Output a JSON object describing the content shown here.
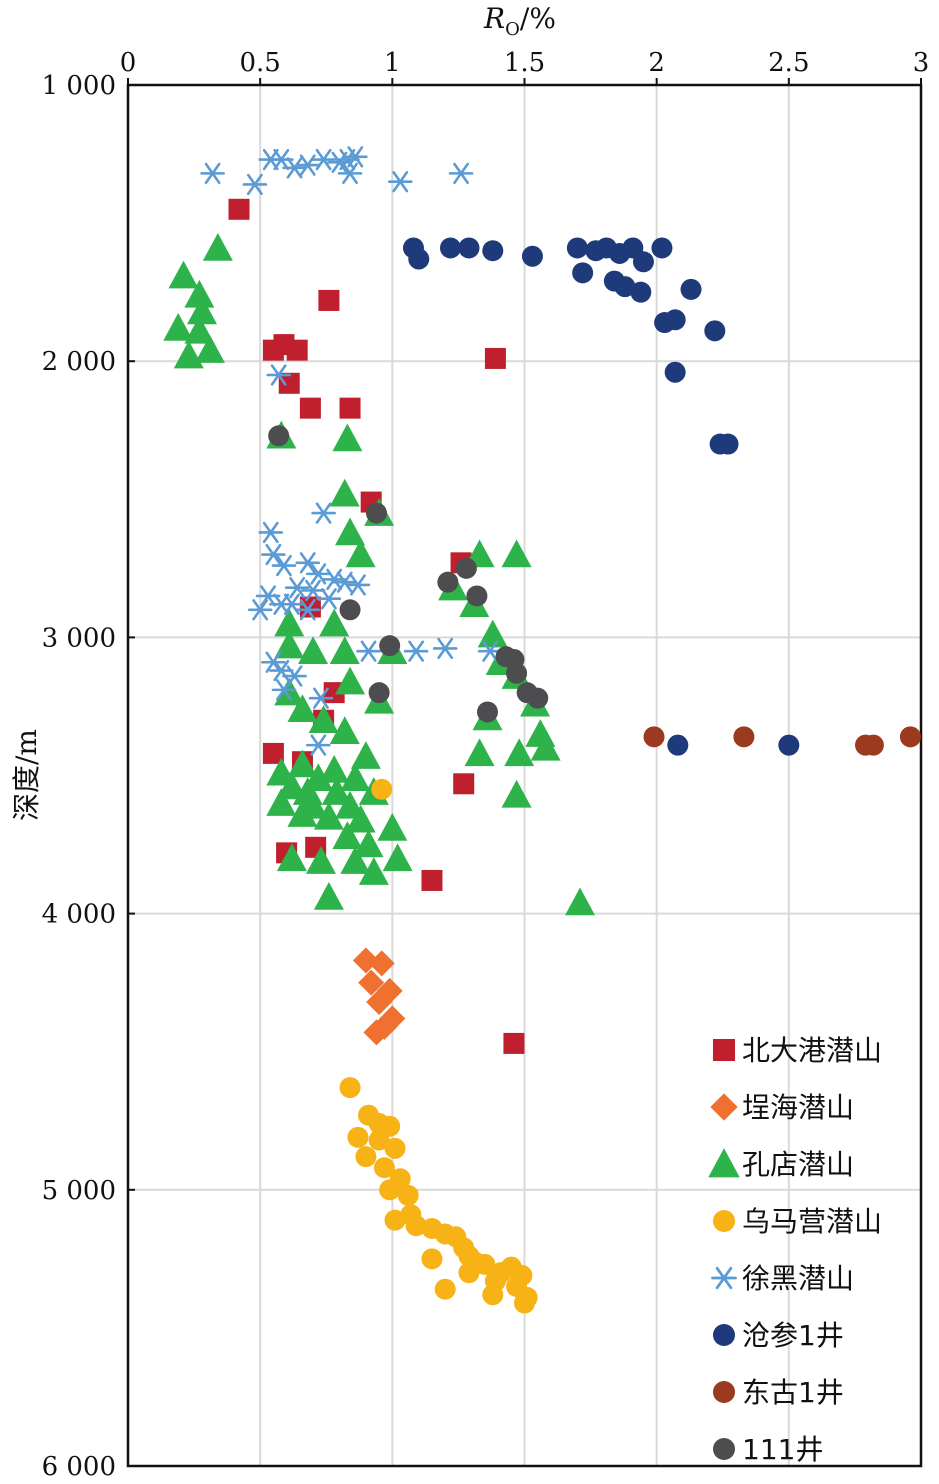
{
  "chart_data": {
    "type": "scatter",
    "title": "",
    "xlabel": "R",
    "xlabel_sub": "O",
    "xlabel_unit": "/%",
    "ylabel": "深度/m",
    "xlim": [
      0,
      3
    ],
    "ylim": [
      1000,
      6000
    ],
    "y_inverted": true,
    "x_axis_position": "top",
    "grid": true,
    "legend_position": "bottom-right",
    "x_ticks": [
      {
        "value": 0,
        "label": "0"
      },
      {
        "value": 0.5,
        "label": "0.5"
      },
      {
        "value": 1,
        "label": "1"
      },
      {
        "value": 1.5,
        "label": "1.5"
      },
      {
        "value": 2,
        "label": "2"
      },
      {
        "value": 2.5,
        "label": "2.5"
      },
      {
        "value": 3,
        "label": "3"
      }
    ],
    "y_ticks": [
      {
        "value": 1000,
        "label": "1 000"
      },
      {
        "value": 2000,
        "label": "2 000"
      },
      {
        "value": 3000,
        "label": "3 000"
      },
      {
        "value": 4000,
        "label": "4 000"
      },
      {
        "value": 5000,
        "label": "5 000"
      },
      {
        "value": 6000,
        "label": "6 000"
      }
    ],
    "series": [
      {
        "name": "北大港潜山",
        "marker": "square",
        "color": "#c0202e",
        "points": [
          [
            0.42,
            1450
          ],
          [
            0.76,
            1780
          ],
          [
            0.55,
            1960
          ],
          [
            0.59,
            1940
          ],
          [
            0.64,
            1960
          ],
          [
            0.61,
            2080
          ],
          [
            0.69,
            2170
          ],
          [
            0.84,
            2170
          ],
          [
            1.39,
            1990
          ],
          [
            0.92,
            2510
          ],
          [
            1.26,
            2730
          ],
          [
            0.69,
            2890
          ],
          [
            0.78,
            3200
          ],
          [
            0.74,
            3300
          ],
          [
            0.55,
            3420
          ],
          [
            0.66,
            3450
          ],
          [
            1.27,
            3530
          ],
          [
            0.6,
            3780
          ],
          [
            0.71,
            3760
          ],
          [
            1.15,
            3880
          ],
          [
            1.46,
            4470
          ]
        ]
      },
      {
        "name": "埕海潜山",
        "marker": "diamond",
        "color": "#f07030",
        "points": [
          [
            0.9,
            4170
          ],
          [
            0.96,
            4180
          ],
          [
            0.92,
            4250
          ],
          [
            0.99,
            4280
          ],
          [
            0.95,
            4320
          ],
          [
            1.0,
            4380
          ],
          [
            0.94,
            4430
          ],
          [
            0.97,
            4410
          ]
        ]
      },
      {
        "name": "孔店潜山",
        "marker": "triangle",
        "color": "#2eb24a",
        "points": [
          [
            0.34,
            1590
          ],
          [
            0.21,
            1690
          ],
          [
            0.27,
            1760
          ],
          [
            0.28,
            1820
          ],
          [
            0.19,
            1880
          ],
          [
            0.27,
            1890
          ],
          [
            0.23,
            1980
          ],
          [
            0.31,
            1960
          ],
          [
            0.58,
            2270
          ],
          [
            0.83,
            2280
          ],
          [
            0.82,
            2480
          ],
          [
            0.95,
            2550
          ],
          [
            0.84,
            2620
          ],
          [
            0.88,
            2700
          ],
          [
            1.33,
            2700
          ],
          [
            1.47,
            2700
          ],
          [
            1.23,
            2820
          ],
          [
            1.31,
            2880
          ],
          [
            0.61,
            2950
          ],
          [
            0.78,
            2950
          ],
          [
            1.38,
            2990
          ],
          [
            0.61,
            3030
          ],
          [
            0.7,
            3050
          ],
          [
            0.82,
            3050
          ],
          [
            1.0,
            3050
          ],
          [
            1.41,
            3090
          ],
          [
            1.47,
            3140
          ],
          [
            0.84,
            3160
          ],
          [
            0.61,
            3200
          ],
          [
            0.95,
            3230
          ],
          [
            1.54,
            3240
          ],
          [
            0.66,
            3260
          ],
          [
            1.36,
            3290
          ],
          [
            0.74,
            3300
          ],
          [
            0.82,
            3340
          ],
          [
            1.56,
            3350
          ],
          [
            1.58,
            3400
          ],
          [
            1.33,
            3420
          ],
          [
            1.48,
            3420
          ],
          [
            0.9,
            3430
          ],
          [
            0.66,
            3460
          ],
          [
            0.78,
            3480
          ],
          [
            0.58,
            3490
          ],
          [
            0.72,
            3510
          ],
          [
            0.86,
            3510
          ],
          [
            0.62,
            3540
          ],
          [
            0.68,
            3560
          ],
          [
            0.79,
            3560
          ],
          [
            0.93,
            3560
          ],
          [
            1.47,
            3570
          ],
          [
            0.58,
            3600
          ],
          [
            0.7,
            3610
          ],
          [
            0.84,
            3610
          ],
          [
            0.66,
            3640
          ],
          [
            0.76,
            3650
          ],
          [
            0.88,
            3660
          ],
          [
            1.0,
            3690
          ],
          [
            0.83,
            3720
          ],
          [
            0.91,
            3750
          ],
          [
            0.62,
            3800
          ],
          [
            0.73,
            3810
          ],
          [
            0.86,
            3810
          ],
          [
            1.02,
            3800
          ],
          [
            0.93,
            3850
          ],
          [
            0.76,
            3940
          ],
          [
            1.71,
            3960
          ]
        ]
      },
      {
        "name": "乌马营潜山",
        "marker": "circle",
        "color": "#f7b215",
        "points": [
          [
            0.96,
            3550
          ],
          [
            0.84,
            4630
          ],
          [
            0.91,
            4730
          ],
          [
            0.95,
            4760
          ],
          [
            0.99,
            4770
          ],
          [
            0.87,
            4810
          ],
          [
            0.95,
            4820
          ],
          [
            1.01,
            4850
          ],
          [
            0.9,
            4880
          ],
          [
            0.97,
            4920
          ],
          [
            1.03,
            4960
          ],
          [
            0.99,
            5000
          ],
          [
            1.06,
            5020
          ],
          [
            1.07,
            5090
          ],
          [
            1.01,
            5110
          ],
          [
            1.09,
            5130
          ],
          [
            1.15,
            5140
          ],
          [
            1.2,
            5160
          ],
          [
            1.24,
            5170
          ],
          [
            1.27,
            5210
          ],
          [
            1.29,
            5240
          ],
          [
            1.31,
            5260
          ],
          [
            1.15,
            5250
          ],
          [
            1.35,
            5270
          ],
          [
            1.45,
            5280
          ],
          [
            1.29,
            5300
          ],
          [
            1.41,
            5300
          ],
          [
            1.49,
            5310
          ],
          [
            1.39,
            5330
          ],
          [
            1.47,
            5350
          ],
          [
            1.2,
            5360
          ],
          [
            1.38,
            5380
          ],
          [
            1.51,
            5390
          ],
          [
            1.5,
            5410
          ]
        ]
      },
      {
        "name": "徐黑潜山",
        "marker": "asterisk",
        "color": "#5b9bd5",
        "points": [
          [
            0.32,
            1320
          ],
          [
            0.48,
            1360
          ],
          [
            0.54,
            1270
          ],
          [
            0.58,
            1270
          ],
          [
            0.63,
            1300
          ],
          [
            0.68,
            1290
          ],
          [
            0.74,
            1270
          ],
          [
            0.8,
            1280
          ],
          [
            0.83,
            1270
          ],
          [
            0.86,
            1260
          ],
          [
            0.84,
            1320
          ],
          [
            1.03,
            1350
          ],
          [
            1.26,
            1320
          ],
          [
            0.57,
            2050
          ],
          [
            0.74,
            2550
          ],
          [
            0.54,
            2620
          ],
          [
            0.55,
            2700
          ],
          [
            0.59,
            2740
          ],
          [
            0.68,
            2730
          ],
          [
            0.72,
            2770
          ],
          [
            0.78,
            2790
          ],
          [
            0.82,
            2800
          ],
          [
            0.87,
            2810
          ],
          [
            0.64,
            2820
          ],
          [
            0.7,
            2830
          ],
          [
            0.53,
            2850
          ],
          [
            0.58,
            2880
          ],
          [
            0.62,
            2880
          ],
          [
            0.5,
            2900
          ],
          [
            0.68,
            2900
          ],
          [
            0.76,
            2860
          ],
          [
            0.55,
            3090
          ],
          [
            0.58,
            3120
          ],
          [
            0.63,
            3140
          ],
          [
            0.59,
            3190
          ],
          [
            0.73,
            3220
          ],
          [
            0.91,
            3050
          ],
          [
            1.09,
            3050
          ],
          [
            1.2,
            3040
          ],
          [
            1.37,
            3050
          ],
          [
            0.72,
            3390
          ]
        ]
      },
      {
        "name": "沧参1井",
        "marker": "circle",
        "color": "#1f3a7a",
        "points": [
          [
            1.08,
            1590
          ],
          [
            1.1,
            1630
          ],
          [
            1.22,
            1590
          ],
          [
            1.29,
            1590
          ],
          [
            1.38,
            1600
          ],
          [
            1.53,
            1620
          ],
          [
            1.7,
            1590
          ],
          [
            1.77,
            1600
          ],
          [
            1.81,
            1590
          ],
          [
            1.86,
            1610
          ],
          [
            1.72,
            1680
          ],
          [
            1.84,
            1710
          ],
          [
            1.91,
            1590
          ],
          [
            1.95,
            1640
          ],
          [
            2.02,
            1590
          ],
          [
            1.88,
            1730
          ],
          [
            1.94,
            1750
          ],
          [
            2.03,
            1860
          ],
          [
            2.13,
            1740
          ],
          [
            2.07,
            1850
          ],
          [
            2.22,
            1890
          ],
          [
            2.07,
            2040
          ],
          [
            2.24,
            2300
          ],
          [
            2.27,
            2300
          ],
          [
            2.08,
            3390
          ],
          [
            2.5,
            3390
          ]
        ]
      },
      {
        "name": "东古1井",
        "marker": "circle",
        "color": "#9b3a1e",
        "points": [
          [
            1.99,
            3360
          ],
          [
            2.33,
            3360
          ],
          [
            2.79,
            3390
          ],
          [
            2.82,
            3390
          ],
          [
            2.96,
            3360
          ]
        ]
      },
      {
        "name": "111井",
        "marker": "circle",
        "color": "#4d4d4f",
        "points": [
          [
            0.57,
            2270
          ],
          [
            0.94,
            2550
          ],
          [
            1.28,
            2750
          ],
          [
            1.21,
            2800
          ],
          [
            1.32,
            2850
          ],
          [
            0.84,
            2900
          ],
          [
            0.99,
            3030
          ],
          [
            1.46,
            3080
          ],
          [
            1.43,
            3070
          ],
          [
            1.47,
            3130
          ],
          [
            1.51,
            3200
          ],
          [
            0.95,
            3200
          ],
          [
            1.55,
            3220
          ],
          [
            1.36,
            3270
          ]
        ]
      }
    ]
  }
}
